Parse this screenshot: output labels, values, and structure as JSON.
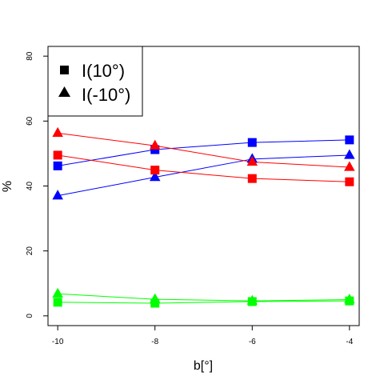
{
  "chart_data": {
    "type": "line",
    "title": "",
    "xlabel": "b[°]",
    "ylabel": "%",
    "x": [
      -10,
      -8,
      -6,
      -4
    ],
    "xlim": [
      -10.2,
      -3.8
    ],
    "ylim": [
      -3,
      83
    ],
    "x_ticks": [
      "-10",
      "-8",
      "-6",
      "-4"
    ],
    "y_ticks": [
      "0",
      "20",
      "40",
      "60",
      "80"
    ],
    "grid": false,
    "legend_position": "top-left",
    "legend": [
      {
        "label": "I(10°)",
        "marker": "square"
      },
      {
        "label": "I(-10°)",
        "marker": "triangle"
      }
    ],
    "series": [
      {
        "color": "#0000ff",
        "marker": "square",
        "values": [
          46.2,
          51.2,
          53.4,
          54.2
        ]
      },
      {
        "color": "#0000ff",
        "marker": "triangle",
        "values": [
          37.0,
          42.7,
          48.3,
          49.5
        ]
      },
      {
        "color": "#ff0000",
        "marker": "square",
        "values": [
          49.5,
          44.9,
          42.3,
          41.3
        ]
      },
      {
        "color": "#ff0000",
        "marker": "triangle",
        "values": [
          56.3,
          52.4,
          47.4,
          45.8
        ]
      },
      {
        "color": "#00ff00",
        "marker": "square",
        "values": [
          4.2,
          3.9,
          4.4,
          4.6
        ]
      },
      {
        "color": "#00ff00",
        "marker": "triangle",
        "values": [
          6.8,
          5.1,
          4.6,
          5.0
        ]
      }
    ]
  }
}
